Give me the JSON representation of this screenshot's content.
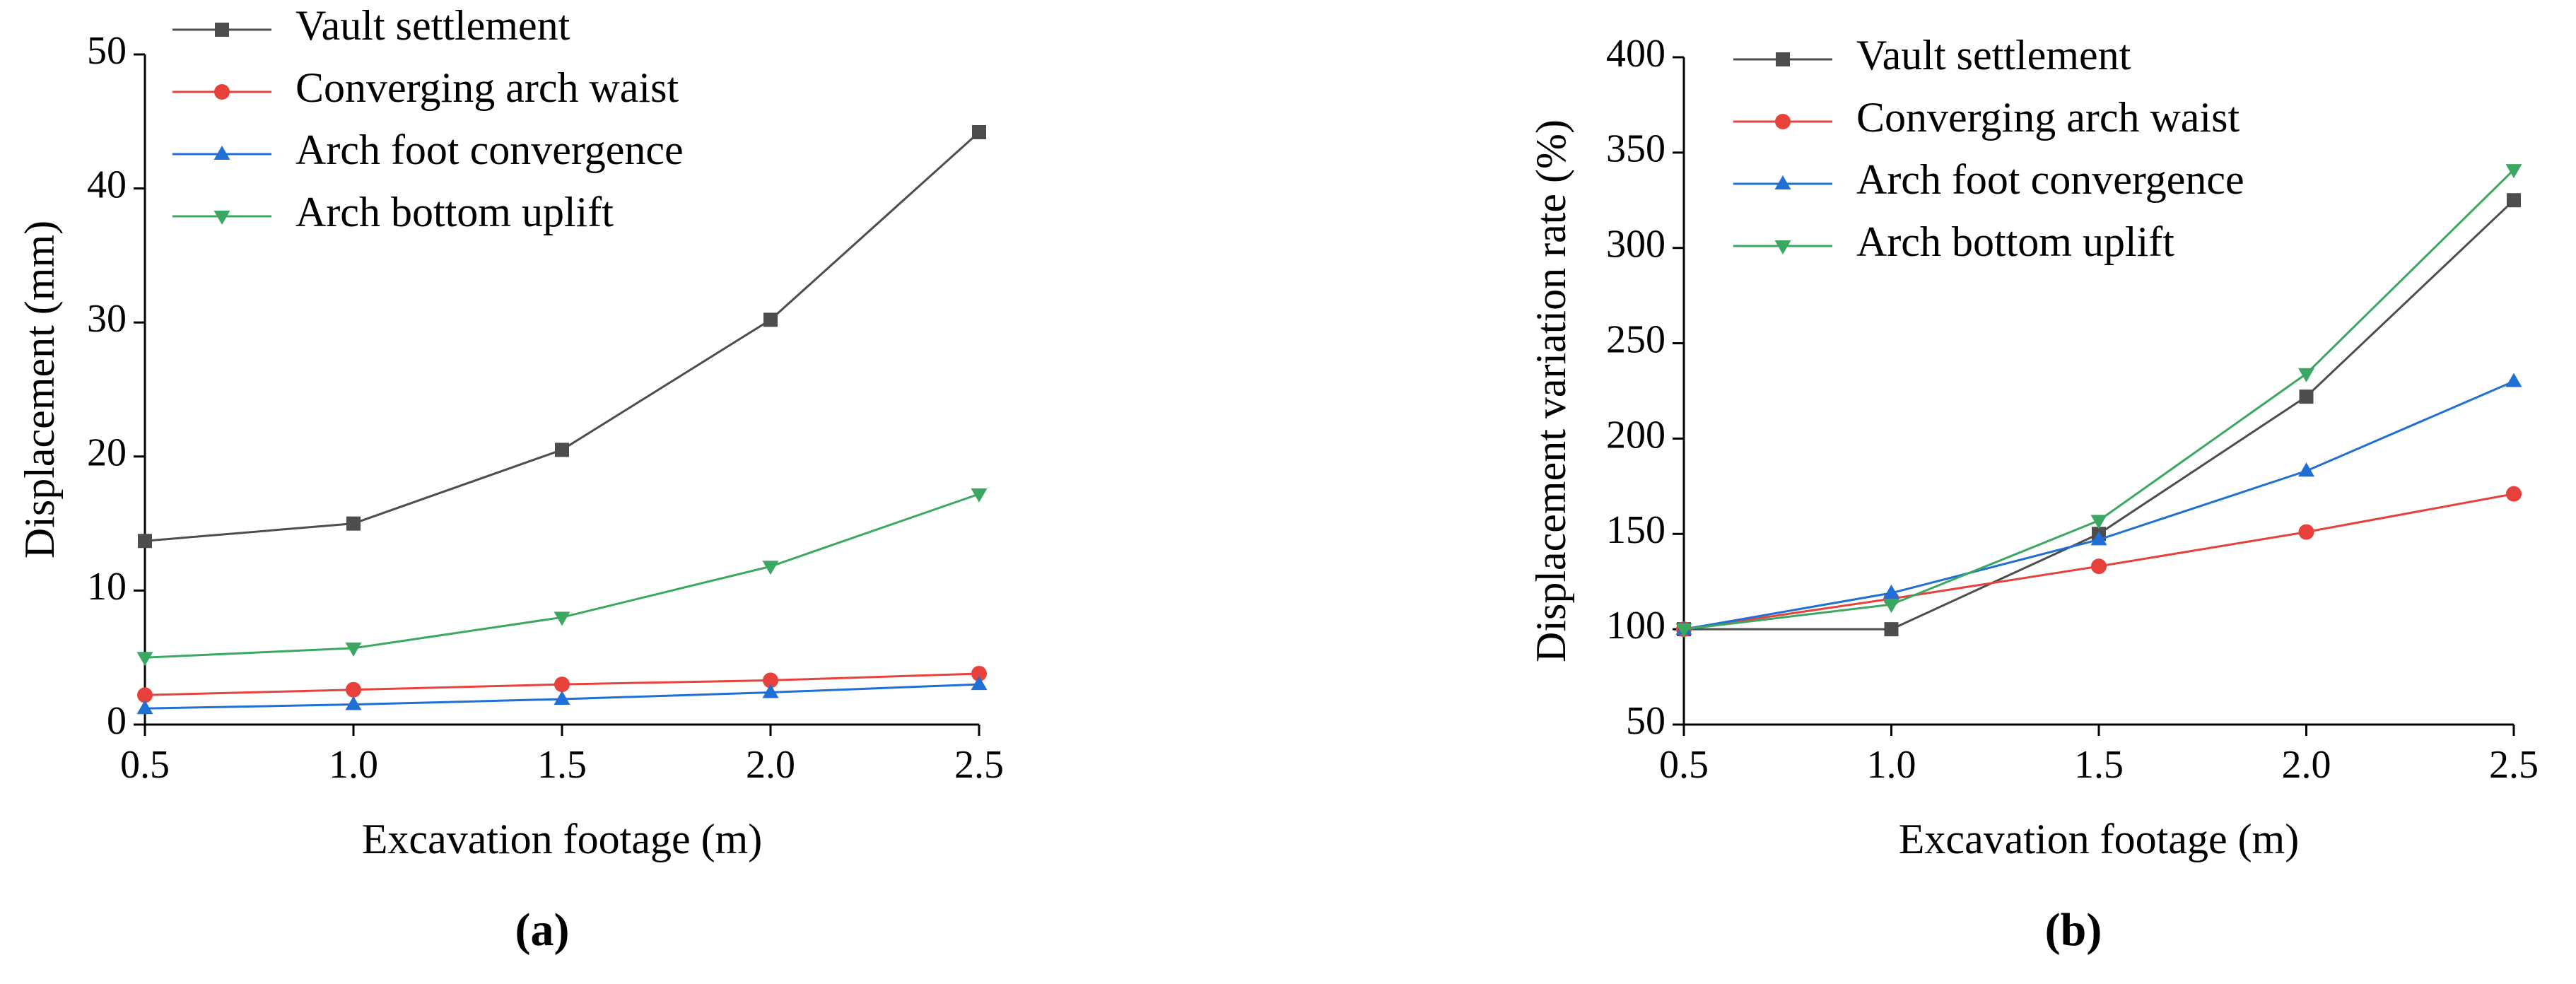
{
  "chart_data": [
    {
      "type": "line",
      "caption": "(a)",
      "xlabel": "Excavation footage (m)",
      "ylabel": "Displacement (mm)",
      "x": [
        0.5,
        1.0,
        1.5,
        2.0,
        2.5
      ],
      "xlim": [
        0.5,
        2.5
      ],
      "xticks": [
        0.5,
        {
          "value": 1.0,
          "label": "1.0"
        },
        1.5,
        {
          "value": 2.0,
          "label": "2.0"
        },
        2.5
      ],
      "ylim": [
        0,
        50
      ],
      "yticks": [
        0,
        10,
        20,
        30,
        40,
        50
      ],
      "legend": "upper left",
      "series": [
        {
          "name": "Vault settlement",
          "color": "#4d4d4d",
          "marker": "square",
          "values": [
            13.7,
            15.0,
            20.5,
            30.2,
            44.2
          ]
        },
        {
          "name": "Converging arch waist",
          "color": "#e8413c",
          "marker": "circle",
          "values": [
            2.2,
            2.6,
            3.0,
            3.3,
            3.8
          ]
        },
        {
          "name": "Arch foot convergence",
          "color": "#1f6fd6",
          "marker": "triangle-up",
          "values": [
            1.2,
            1.5,
            1.9,
            2.4,
            3.0
          ]
        },
        {
          "name": "Arch bottom uplift",
          "color": "#3aa860",
          "marker": "triangle-down",
          "values": [
            5.0,
            5.7,
            8.0,
            11.8,
            17.2
          ]
        }
      ]
    },
    {
      "type": "line",
      "caption": "(b)",
      "xlabel": "Excavation footage (m)",
      "ylabel": "Displacement variation rate (%)",
      "x": [
        0.5,
        1.0,
        1.5,
        2.0,
        2.5
      ],
      "xlim": [
        0.5,
        2.5
      ],
      "xticks": [
        0.5,
        {
          "value": 1.0,
          "label": "1.0"
        },
        1.5,
        {
          "value": 2.0,
          "label": "2.0"
        },
        2.5
      ],
      "ylim": [
        50,
        400
      ],
      "yticks": [
        50,
        100,
        150,
        200,
        250,
        300,
        350,
        400
      ],
      "legend": "upper left",
      "series": [
        {
          "name": "Vault settlement",
          "color": "#4d4d4d",
          "marker": "square",
          "values": [
            100,
            100,
            150,
            222,
            325
          ]
        },
        {
          "name": "Converging arch waist",
          "color": "#e8413c",
          "marker": "circle",
          "values": [
            100,
            116,
            133,
            151,
            171
          ]
        },
        {
          "name": "Arch foot convergence",
          "color": "#1f6fd6",
          "marker": "triangle-up",
          "values": [
            100,
            119,
            147,
            183,
            230
          ]
        },
        {
          "name": "Arch bottom uplift",
          "color": "#3aa860",
          "marker": "triangle-down",
          "values": [
            100,
            113,
            157,
            234,
            341
          ]
        }
      ]
    }
  ]
}
